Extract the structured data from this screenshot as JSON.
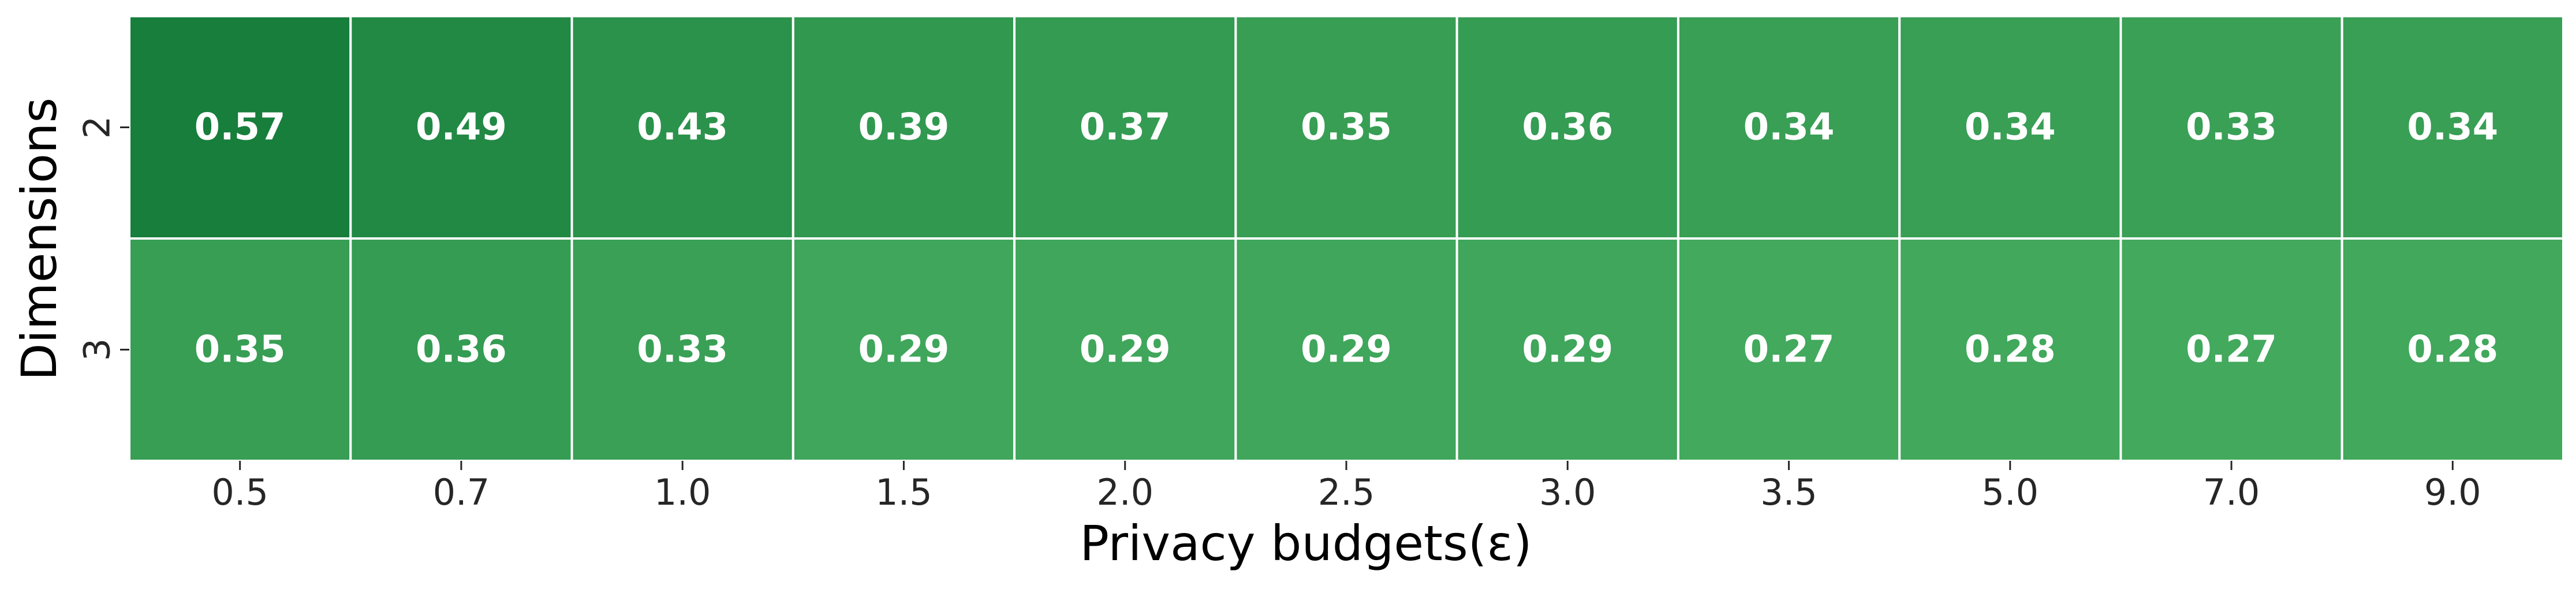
{
  "chart_data": {
    "type": "heatmap",
    "xlabel": "Privacy budgets(ε)",
    "ylabel": "Dimensions",
    "x_categories": [
      "0.5",
      "0.7",
      "1.0",
      "1.5",
      "2.0",
      "2.5",
      "3.0",
      "3.5",
      "5.0",
      "7.0",
      "9.0"
    ],
    "y_categories": [
      "2",
      "3"
    ],
    "values": [
      [
        0.57,
        0.49,
        0.43,
        0.39,
        0.37,
        0.35,
        0.36,
        0.34,
        0.34,
        0.33,
        0.34
      ],
      [
        0.35,
        0.36,
        0.33,
        0.29,
        0.29,
        0.29,
        0.29,
        0.27,
        0.28,
        0.27,
        0.28
      ]
    ],
    "cell_labels": [
      [
        "0.57",
        "0.49",
        "0.43",
        "0.39",
        "0.37",
        "0.35",
        "0.36",
        "0.34",
        "0.34",
        "0.33",
        "0.34"
      ],
      [
        "0.35",
        "0.36",
        "0.33",
        "0.29",
        "0.29",
        "0.29",
        "0.29",
        "0.27",
        "0.28",
        "0.27",
        "0.28"
      ]
    ],
    "colormap": "Greens",
    "color_low": "#42a95d",
    "color_high": "#177e3c",
    "cell_border_color": "#ffffff",
    "label_color": "#ffffff",
    "colorbar": false
  }
}
